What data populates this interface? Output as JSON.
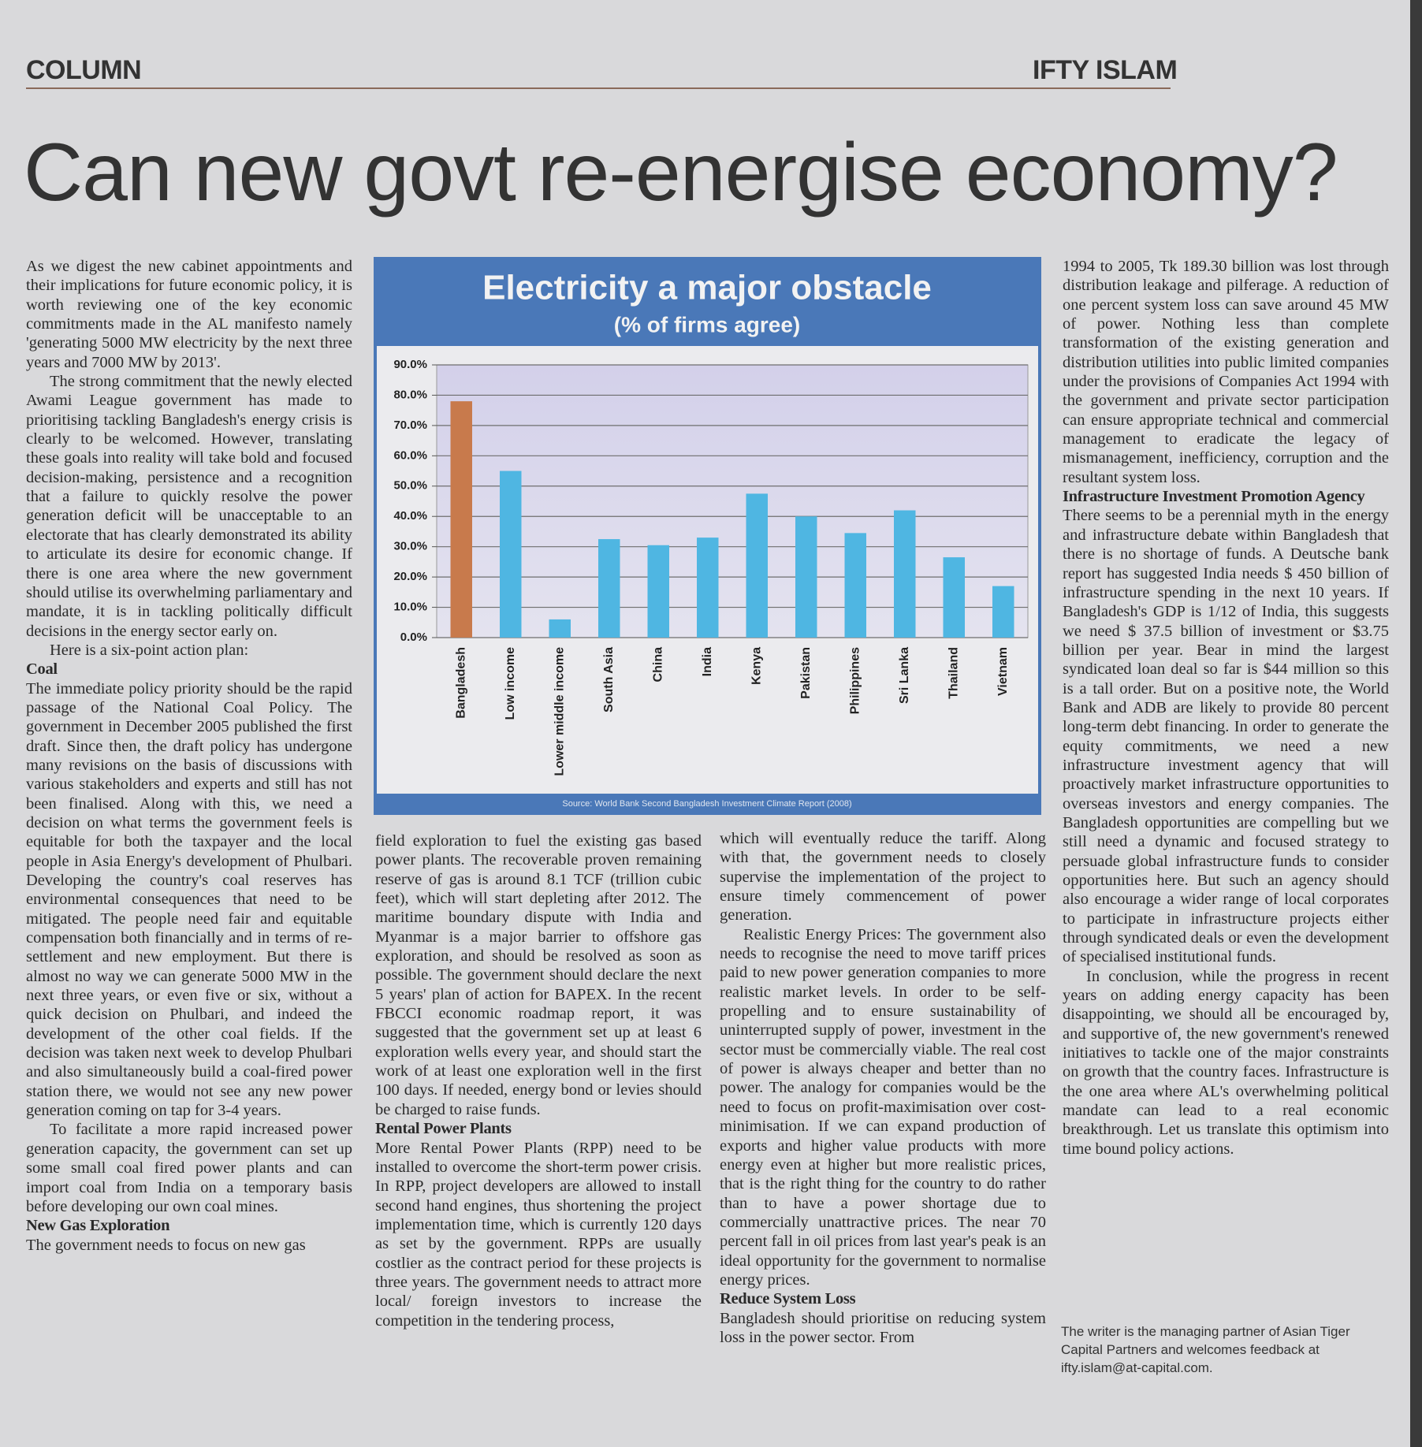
{
  "header": {
    "section": "COLUMN",
    "author": "IFTY ISLAM"
  },
  "headline": "Can new govt re-energise economy?",
  "chart_data": {
    "type": "bar",
    "title": "Electricity a major obstacle",
    "subtitle": "(% of firms agree)",
    "source": "Source: World Bank Second Bangladesh Investment Climate Report (2008)",
    "categories": [
      "Bangladesh",
      "Low income",
      "Lower middle income",
      "South Asia",
      "China",
      "India",
      "Kenya",
      "Pakistan",
      "Philippines",
      "Sri Lanka",
      "Thailand",
      "Vietnam"
    ],
    "values": [
      78,
      55,
      6,
      32.5,
      30.5,
      33,
      47.5,
      40,
      34.5,
      42,
      26.5,
      17
    ],
    "colors": [
      "#c87a4c",
      "#4fb6e2",
      "#4fb6e2",
      "#4fb6e2",
      "#4fb6e2",
      "#4fb6e2",
      "#4fb6e2",
      "#4fb6e2",
      "#4fb6e2",
      "#4fb6e2",
      "#4fb6e2",
      "#4fb6e2"
    ],
    "ylim": [
      0,
      90
    ],
    "yticks": [
      {
        "value": 0,
        "label": "0.0%"
      },
      {
        "value": 10,
        "label": "10.0%"
      },
      {
        "value": 20,
        "label": "20.0%"
      },
      {
        "value": 30,
        "label": "30.0%"
      },
      {
        "value": 40,
        "label": "40.0%"
      },
      {
        "value": 50,
        "label": "50.0%"
      },
      {
        "value": 60,
        "label": "60.0%"
      },
      {
        "value": 70,
        "label": "70.0%"
      },
      {
        "value": 80,
        "label": "80.0%"
      },
      {
        "value": 90,
        "label": "90.0%"
      }
    ],
    "grid": true
  },
  "columns": [
    {
      "blocks": [
        {
          "text": "As we digest the new cabinet appointments and their implications for future economic policy, it is worth reviewing one of the key economic commitments made in the AL manifesto namely 'generating 5000 MW electricity by the next three years and 7000 MW by 2013'.",
          "indent": false
        },
        {
          "text": "The strong commitment that the newly elected Awami League government has made to prioritising tackling Bangladesh's energy crisis is clearly to be welcomed. However, translating these goals into reality will take bold and focused decision-making, persistence and a recognition that a failure to quickly resolve the power generation deficit will be unacceptable to an electorate that has clearly demonstrated its ability to articulate its desire for economic change. If there is one area where the new government should utilise its overwhelming parliamentary and mandate, it is in tackling politically difficult decisions in the energy sector early on.",
          "indent": true
        },
        {
          "text": "Here is a six-point action plan:",
          "indent": true
        },
        {
          "heading": "Coal"
        },
        {
          "text": "The immediate policy priority should be the rapid passage of the National Coal Policy. The government in December 2005 published the first draft. Since then, the draft policy has undergone many revisions on the basis of discussions with various stakeholders and experts and still has not been finalised. Along with this, we need a decision on what terms the government feels is equitable for both the taxpayer and the local people in Asia Energy's development of Phulbari. Developing the country's coal reserves has environmental consequences that need to be mitigated. The people need fair and equitable compensation both financially and in terms of re-settlement and new employment. But there is almost no way we can generate 5000 MW in the next three years, or even five or six, without a quick decision on Phulbari, and indeed the development of the other coal fields. If the decision was taken next week to develop Phulbari and also simultaneously build a coal-fired power station there, we would not see any new power generation coming on tap for 3-4 years.",
          "indent": false
        },
        {
          "text": "To facilitate a more rapid increased power generation capacity, the government can set up some small coal fired power plants and can import coal from India on a temporary basis before developing our own coal mines.",
          "indent": true
        },
        {
          "heading": "New Gas Exploration"
        },
        {
          "text": "The government needs to focus on new gas",
          "indent": false
        }
      ]
    },
    {
      "blocks": [
        {
          "text": "field exploration to fuel the existing gas based power plants. The recoverable proven remaining reserve of gas is around 8.1 TCF (trillion cubic feet), which will start depleting after 2012. The maritime boundary dispute with India and Myanmar is a major barrier to offshore gas exploration, and should be resolved as soon as possible. The government should declare the next 5 years' plan of action for BAPEX. In the recent FBCCI economic roadmap report, it was suggested that the government set up at least 6 exploration wells every year, and should start the work of at least one exploration well in the first 100 days. If needed, energy bond or levies should be charged to raise funds.",
          "indent": false
        },
        {
          "heading": "Rental Power Plants"
        },
        {
          "text": "More Rental Power Plants (RPP) need to be installed to overcome the short-term power crisis. In RPP, project developers are allowed to install second hand engines, thus shortening the project implementation time, which is currently 120 days as set by the government. RPPs are usually costlier as the contract period for these projects is three years. The government needs to attract more local/ foreign investors to increase the competition in the tendering process,",
          "indent": false
        }
      ]
    },
    {
      "blocks": [
        {
          "text": "which will eventually reduce the tariff. Along with that, the government needs to closely supervise the implementation of the project to ensure timely commencement of power generation.",
          "indent": false
        },
        {
          "text": "Realistic Energy Prices: The government also needs to recognise the need to move tariff prices paid to new power generation companies to more realistic market levels. In order to be self-propelling and to ensure sustainability of uninterrupted supply of power, investment in the sector must be commercially viable. The real cost of power is always cheaper and better than no power. The analogy for companies would be the need to focus on profit-maximisation over cost-minimisation. If we can expand production of exports and higher value products with more energy even at higher but more realistic prices, that is the right thing for the country to do rather than to have a power shortage due to commercially unattractive prices. The near 70 percent fall in oil prices from last year's peak is an ideal opportunity for the government to normalise energy prices.",
          "indent": true
        },
        {
          "heading": "Reduce System Loss"
        },
        {
          "text": "Bangladesh should prioritise on reducing system loss in the power sector. From",
          "indent": false
        }
      ]
    },
    {
      "blocks": [
        {
          "text": "1994 to 2005, Tk 189.30 billion was lost through distribution leakage and pilferage. A reduction of one percent system loss can save around 45 MW of power. Nothing less than complete transformation of the existing generation and distribution utilities into public limited companies under the provisions of Companies Act 1994 with the government and private sector participation can ensure appropriate technical and commercial management to eradicate the legacy of mismanagement, inefficiency, corruption and the resultant system loss.",
          "indent": false
        },
        {
          "heading": "Infrastructure Investment Promotion Agency"
        },
        {
          "text": "There seems to be a perennial myth in the energy and infrastructure debate within Bangladesh that there is no shortage of funds. A Deutsche bank report has suggested India needs $ 450 billion of infrastructure spending in the next 10 years. If Bangladesh's GDP is 1/12 of India, this suggests we need $ 37.5 billion of investment or $3.75 billion per year. Bear in mind the largest syndicated loan deal so far is $44 million so this is a tall order. But on a positive note, the World Bank and ADB are likely to provide 80 percent long-term debt financing. In order to generate the equity commitments, we need a new infrastructure investment agency that will proactively market infrastructure opportunities to overseas investors and energy companies. The Bangladesh opportunities are compelling but we still need a dynamic and focused strategy to persuade global infrastructure funds to consider opportunities here. But such an agency should also encourage a wider range of local corporates to participate in infrastructure projects either through syndicated deals or even the development of specialised institutional funds.",
          "indent": false
        },
        {
          "text": "In conclusion, while the progress in recent years on adding energy capacity has been disappointing, we should all be encouraged by, and supportive of, the new government's renewed initiatives to tackle one of the major constraints on growth that the country faces. Infrastructure is the one area where AL's overwhelming political mandate can lead to a real economic breakthrough. Let us translate this optimism into time bound policy actions.",
          "indent": true
        }
      ]
    }
  ],
  "footer_note": "The writer is the managing partner of Asian Tiger Capital Partners and welcomes feedback at ifty.islam@at-capital.com."
}
